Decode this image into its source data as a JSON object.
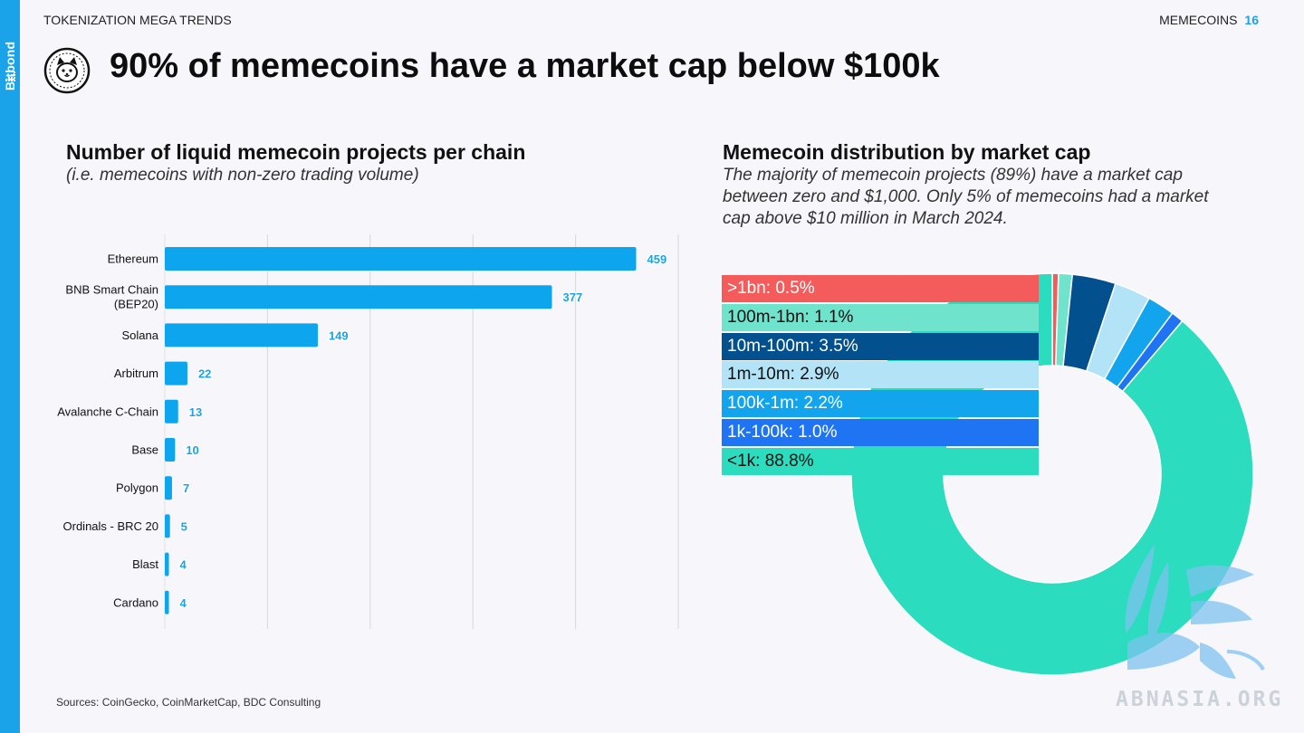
{
  "header": {
    "section": "TOKENIZATION MEGA TRENDS",
    "topic": "MEMECOINS",
    "page_number": "16",
    "brand": "Bitbond"
  },
  "headline": "90% of memecoins have a market cap below $100k",
  "bar_panel": {
    "title": "Number of liquid memecoin projects per chain",
    "subtitle": "(i.e. memecoins with non-zero trading volume)"
  },
  "donut_panel": {
    "title": "Memecoin distribution by market cap",
    "subtitle_lines": [
      "The majority of memecoin projects (89%) have a market cap",
      "between zero and $1,000. Only 5% of memecoins had a market",
      "cap above $10 million in March 2024."
    ]
  },
  "sources": "Sources: CoinGecko, CoinMarketCap, BDC Consulting",
  "watermark": "ABNASIA.ORG",
  "chart_data": [
    {
      "type": "bar",
      "orientation": "horizontal",
      "categories": [
        "Ethereum",
        "BNB Smart Chain (BEP20)",
        "Solana",
        "Arbitrum",
        "Avalanche C-Chain",
        "Base",
        "Polygon",
        "Ordinals - BRC 20",
        "Blast",
        "Cardano"
      ],
      "values": [
        459,
        377,
        149,
        22,
        13,
        10,
        7,
        5,
        4,
        4
      ],
      "xlim": [
        0,
        500
      ],
      "grid": true,
      "bar_color": "#0ea5ef",
      "label_color": "#1aa3e8"
    },
    {
      "type": "pie",
      "style": "donut",
      "legend_position": "top-left",
      "slices": [
        {
          "label": ">1bn: 0.5%",
          "value": 0.5,
          "color": "#f45b5b"
        },
        {
          "label": "100m-1bn: 1.1%",
          "value": 1.1,
          "color": "#6fe3cc"
        },
        {
          "label": "10m-100m: 3.5%",
          "value": 3.5,
          "color": "#03508f"
        },
        {
          "label": "1m-10m: 2.9%",
          "value": 2.9,
          "color": "#b3e3f7"
        },
        {
          "label": "100k-1m: 2.2%",
          "value": 2.2,
          "color": "#12a5ee"
        },
        {
          "label": "1k-100k: 1.0%",
          "value": 1.0,
          "color": "#1e74f2"
        },
        {
          "label": "<1k: 88.8%",
          "value": 88.8,
          "color": "#2bdcbe"
        }
      ]
    }
  ]
}
